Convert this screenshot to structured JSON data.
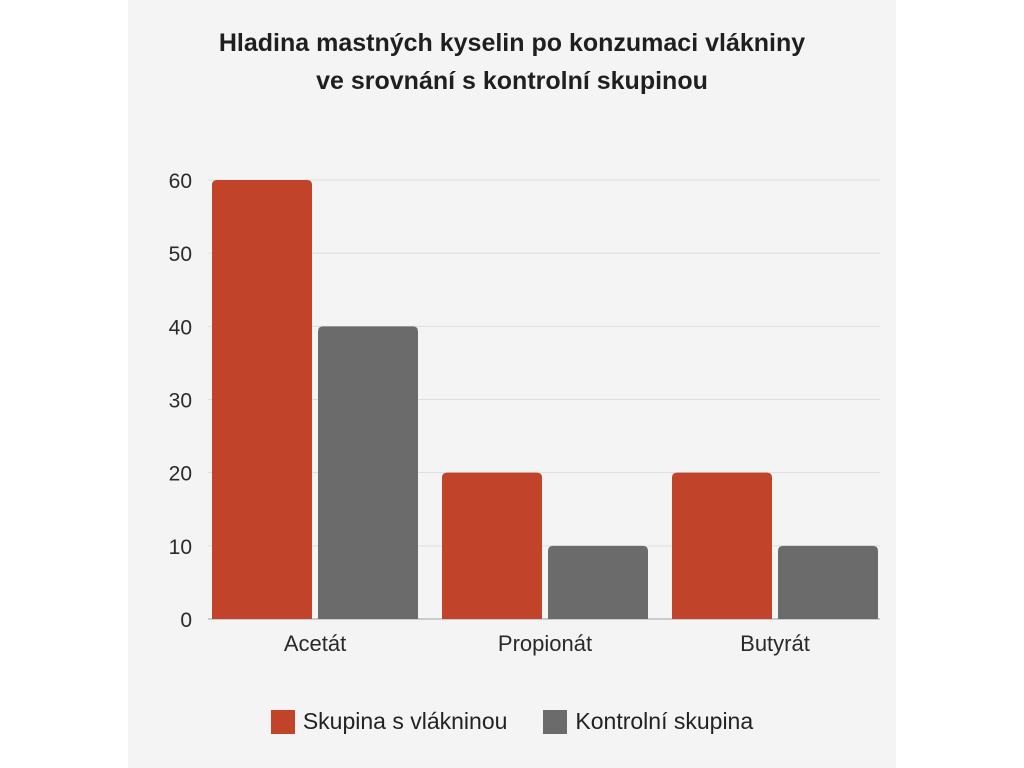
{
  "colors": {
    "series_fiber": "#c0432a",
    "series_control": "#6b6b6b",
    "grid": "#dedede",
    "axis": "#bbbbbb"
  },
  "chart_data": {
    "type": "bar",
    "title_line1": "Hladina mastných kyselin po konzumaci vlákniny",
    "title_line2": "ve srovnání s kontrolní skupinou",
    "categories": [
      "Acetát",
      "Propionát",
      "Butyrát"
    ],
    "series": [
      {
        "name": "Skupina s vlákninou",
        "values": [
          60,
          20,
          20
        ]
      },
      {
        "name": "Kontrolní skupina",
        "values": [
          40,
          10,
          10
        ]
      }
    ],
    "ylim": [
      0,
      60
    ],
    "yticks": [
      0,
      10,
      20,
      30,
      40,
      50,
      60
    ],
    "grid": true,
    "legend": "bottom"
  }
}
